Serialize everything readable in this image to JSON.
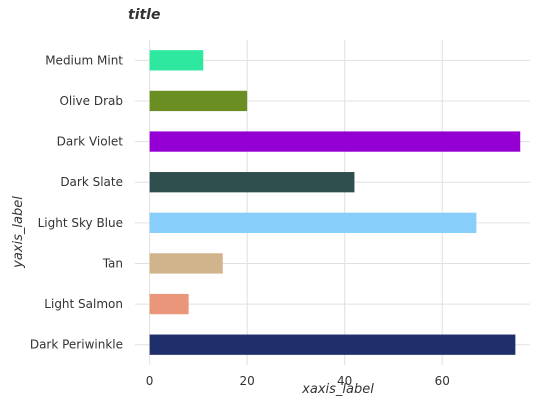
{
  "chart_data": {
    "type": "bar",
    "orientation": "horizontal",
    "title": "title",
    "xlabel": "xaxis_label",
    "ylabel": "yaxis_label",
    "xlim": [
      -3,
      78
    ],
    "xticks": [
      0,
      20,
      40,
      60
    ],
    "grid": true,
    "categories": [
      "Dark Periwinkle",
      "Light Salmon",
      "Tan",
      "Light Sky Blue",
      "Dark Slate",
      "Dark Violet",
      "Olive Drab",
      "Medium Mint"
    ],
    "values": [
      75,
      8,
      15,
      67,
      42,
      76,
      20,
      11
    ],
    "colors": [
      "#1f2f6b",
      "#e9967a",
      "#d2b48c",
      "#87cefa",
      "#2f4f4f",
      "#9400d3",
      "#6b8e23",
      "#2ee8a0"
    ]
  }
}
